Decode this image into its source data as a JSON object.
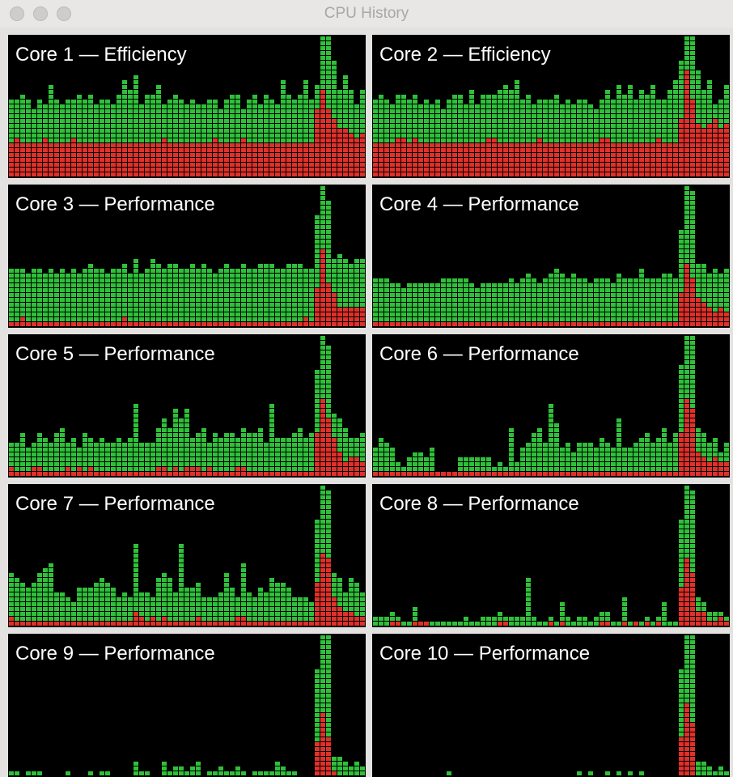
{
  "window": {
    "title": "CPU History",
    "traffic_lights": [
      "close-button",
      "minimize-button",
      "zoom-button"
    ]
  },
  "colors": {
    "user": "#2FC03A",
    "system": "#E0302A",
    "background": "#000000"
  },
  "cores": [
    {
      "label": "Core 1 — Efficiency",
      "system": [
        7,
        8,
        7,
        7,
        7,
        7,
        8,
        7,
        7,
        7,
        7,
        8,
        7,
        7,
        7,
        7,
        7,
        7,
        7,
        7,
        7,
        7,
        7,
        7,
        7,
        7,
        7,
        8,
        7,
        7,
        7,
        7,
        7,
        7,
        7,
        7,
        8,
        7,
        7,
        7,
        7,
        8,
        7,
        7,
        7,
        7,
        7,
        7,
        7,
        7,
        7,
        7,
        7,
        7,
        14,
        18,
        14,
        12,
        10,
        10,
        9,
        8,
        9,
        8
      ],
      "total": [
        16,
        16,
        17,
        16,
        14,
        16,
        15,
        19,
        16,
        15,
        16,
        16,
        17,
        16,
        17,
        15,
        16,
        16,
        15,
        17,
        20,
        18,
        21,
        15,
        17,
        17,
        19,
        15,
        16,
        17,
        16,
        15,
        16,
        15,
        15,
        16,
        16,
        14,
        16,
        17,
        17,
        14,
        16,
        17,
        15,
        17,
        16,
        15,
        20,
        17,
        16,
        17,
        20,
        16,
        19,
        29,
        29,
        24,
        18,
        21,
        18,
        15,
        18,
        19
      ]
    },
    {
      "label": "Core 2 — Efficiency",
      "system": [
        7,
        7,
        7,
        7,
        8,
        8,
        7,
        8,
        7,
        7,
        7,
        7,
        7,
        7,
        7,
        7,
        7,
        7,
        7,
        7,
        8,
        8,
        7,
        7,
        7,
        7,
        7,
        7,
        7,
        8,
        7,
        7,
        7,
        7,
        7,
        7,
        7,
        7,
        7,
        7,
        8,
        8,
        7,
        7,
        7,
        7,
        7,
        7,
        7,
        7,
        8,
        7,
        7,
        7,
        12,
        22,
        16,
        11,
        10,
        11,
        12,
        10,
        11,
        10
      ],
      "total": [
        16,
        17,
        16,
        15,
        17,
        17,
        16,
        17,
        15,
        16,
        15,
        16,
        14,
        16,
        17,
        17,
        15,
        18,
        15,
        17,
        17,
        17,
        18,
        19,
        18,
        20,
        16,
        17,
        15,
        16,
        16,
        16,
        17,
        15,
        16,
        15,
        16,
        16,
        15,
        14,
        16,
        18,
        16,
        19,
        17,
        19,
        16,
        18,
        17,
        19,
        16,
        16,
        18,
        20,
        24,
        29,
        29,
        22,
        18,
        20,
        15,
        16,
        19,
        19
      ]
    },
    {
      "label": "Core 3 — Performance",
      "system": [
        1,
        1,
        2,
        1,
        1,
        1,
        1,
        1,
        1,
        1,
        1,
        1,
        1,
        1,
        1,
        1,
        1,
        1,
        1,
        1,
        2,
        1,
        1,
        1,
        1,
        1,
        1,
        1,
        1,
        1,
        1,
        1,
        1,
        1,
        1,
        1,
        1,
        1,
        1,
        1,
        1,
        1,
        1,
        1,
        1,
        1,
        1,
        1,
        1,
        1,
        1,
        1,
        2,
        1,
        8,
        16,
        9,
        7,
        4,
        4,
        4,
        4,
        4,
        4
      ],
      "total": [
        12,
        12,
        12,
        11,
        12,
        12,
        11,
        12,
        11,
        12,
        11,
        12,
        11,
        12,
        13,
        12,
        12,
        11,
        12,
        12,
        13,
        11,
        14,
        11,
        12,
        14,
        13,
        12,
        13,
        13,
        12,
        12,
        13,
        12,
        13,
        12,
        11,
        12,
        13,
        12,
        12,
        13,
        12,
        12,
        13,
        13,
        13,
        12,
        12,
        13,
        13,
        13,
        12,
        12,
        23,
        29,
        26,
        14,
        15,
        14,
        13,
        14,
        14,
        13
      ]
    },
    {
      "label": "Core 4 — Performance",
      "system": [
        1,
        1,
        1,
        1,
        1,
        1,
        1,
        1,
        1,
        1,
        1,
        1,
        1,
        1,
        1,
        1,
        1,
        1,
        1,
        1,
        1,
        1,
        1,
        1,
        1,
        1,
        1,
        1,
        1,
        1,
        1,
        1,
        1,
        1,
        1,
        1,
        1,
        1,
        1,
        1,
        1,
        1,
        1,
        1,
        1,
        1,
        1,
        1,
        1,
        1,
        1,
        1,
        1,
        1,
        7,
        13,
        10,
        6,
        5,
        4,
        3,
        4,
        3,
        4
      ],
      "total": [
        10,
        10,
        10,
        9,
        9,
        8,
        9,
        9,
        9,
        9,
        9,
        9,
        10,
        10,
        10,
        10,
        10,
        9,
        8,
        9,
        9,
        9,
        9,
        9,
        10,
        9,
        10,
        11,
        10,
        9,
        10,
        11,
        12,
        11,
        10,
        11,
        10,
        10,
        9,
        10,
        10,
        10,
        9,
        11,
        10,
        10,
        10,
        12,
        10,
        10,
        10,
        11,
        11,
        10,
        20,
        29,
        28,
        13,
        13,
        11,
        12,
        11,
        12,
        10
      ]
    },
    {
      "label": "Core 5 — Performance",
      "system": [
        2,
        1,
        1,
        1,
        2,
        2,
        1,
        1,
        1,
        1,
        2,
        1,
        2,
        1,
        2,
        1,
        1,
        1,
        1,
        1,
        1,
        1,
        1,
        1,
        1,
        1,
        2,
        2,
        1,
        2,
        1,
        2,
        2,
        2,
        1,
        2,
        1,
        1,
        1,
        1,
        2,
        2,
        1,
        1,
        1,
        1,
        1,
        1,
        1,
        1,
        1,
        1,
        1,
        1,
        9,
        16,
        12,
        8,
        5,
        3,
        4,
        4,
        3,
        3
      ],
      "total": [
        7,
        7,
        9,
        6,
        7,
        9,
        8,
        7,
        9,
        10,
        7,
        8,
        6,
        9,
        8,
        7,
        8,
        7,
        7,
        8,
        7,
        8,
        15,
        7,
        7,
        7,
        10,
        12,
        10,
        14,
        12,
        14,
        8,
        9,
        10,
        7,
        9,
        8,
        9,
        9,
        8,
        10,
        9,
        9,
        10,
        7,
        15,
        8,
        8,
        8,
        9,
        10,
        8,
        9,
        22,
        29,
        27,
        13,
        12,
        10,
        8,
        8,
        9,
        7
      ]
    },
    {
      "label": "Core 6 — Performance",
      "system": [
        1,
        1,
        1,
        1,
        1,
        1,
        1,
        1,
        1,
        1,
        1,
        1,
        1,
        1,
        1,
        1,
        1,
        1,
        1,
        1,
        1,
        1,
        1,
        1,
        1,
        1,
        1,
        1,
        1,
        1,
        1,
        1,
        1,
        1,
        1,
        1,
        1,
        1,
        1,
        1,
        1,
        1,
        1,
        1,
        1,
        1,
        1,
        1,
        1,
        1,
        1,
        1,
        1,
        1,
        9,
        16,
        14,
        5,
        4,
        3,
        4,
        3,
        3,
        3
      ],
      "total": [
        6,
        8,
        7,
        6,
        3,
        2,
        4,
        5,
        5,
        4,
        6,
        1,
        1,
        1,
        1,
        4,
        4,
        4,
        4,
        4,
        4,
        2,
        3,
        2,
        10,
        3,
        6,
        7,
        9,
        10,
        7,
        15,
        11,
        6,
        7,
        5,
        7,
        7,
        7,
        6,
        8,
        7,
        6,
        12,
        6,
        6,
        7,
        8,
        9,
        7,
        8,
        10,
        7,
        9,
        23,
        29,
        29,
        10,
        9,
        7,
        8,
        5,
        7,
        5
      ]
    },
    {
      "label": "Core 7 — Performance",
      "system": [
        2,
        1,
        1,
        1,
        1,
        1,
        1,
        1,
        1,
        1,
        1,
        1,
        1,
        1,
        1,
        1,
        1,
        1,
        1,
        1,
        1,
        1,
        3,
        2,
        1,
        2,
        1,
        2,
        1,
        1,
        1,
        1,
        1,
        2,
        1,
        1,
        1,
        1,
        1,
        1,
        2,
        2,
        1,
        1,
        1,
        1,
        1,
        1,
        1,
        1,
        1,
        1,
        1,
        1,
        9,
        15,
        14,
        6,
        4,
        3,
        3,
        2,
        2,
        2
      ],
      "total": [
        11,
        10,
        9,
        8,
        9,
        11,
        12,
        13,
        7,
        7,
        6,
        5,
        8,
        8,
        8,
        9,
        10,
        9,
        8,
        6,
        7,
        6,
        17,
        7,
        7,
        6,
        10,
        11,
        10,
        7,
        17,
        8,
        8,
        9,
        6,
        6,
        6,
        7,
        11,
        8,
        6,
        13,
        7,
        6,
        8,
        7,
        10,
        9,
        9,
        8,
        6,
        6,
        6,
        5,
        22,
        29,
        28,
        11,
        10,
        7,
        10,
        9,
        7,
        11
      ]
    },
    {
      "label": "Core 8 — Performance",
      "system": [
        0,
        0,
        0,
        1,
        1,
        0,
        0,
        1,
        1,
        1,
        0,
        0,
        0,
        0,
        0,
        0,
        0,
        0,
        0,
        0,
        0,
        0,
        1,
        1,
        0,
        0,
        0,
        0,
        0,
        0,
        0,
        1,
        0,
        1,
        0,
        0,
        0,
        0,
        0,
        0,
        1,
        1,
        0,
        0,
        1,
        0,
        1,
        0,
        1,
        0,
        1,
        0,
        0,
        0,
        8,
        14,
        11,
        3,
        3,
        1,
        1,
        2,
        1,
        1
      ],
      "total": [
        2,
        2,
        2,
        3,
        2,
        1,
        1,
        4,
        1,
        1,
        1,
        1,
        1,
        1,
        1,
        1,
        2,
        1,
        1,
        2,
        2,
        2,
        3,
        2,
        2,
        2,
        2,
        10,
        2,
        1,
        1,
        2,
        1,
        5,
        2,
        1,
        2,
        2,
        1,
        2,
        3,
        3,
        1,
        1,
        6,
        1,
        1,
        1,
        2,
        1,
        2,
        5,
        1,
        1,
        22,
        29,
        28,
        6,
        5,
        3,
        3,
        3,
        2,
        3
      ]
    },
    {
      "label": "Core 9 — Performance",
      "system": [
        0,
        0,
        0,
        0,
        0,
        0,
        0,
        0,
        0,
        0,
        0,
        0,
        0,
        0,
        0,
        0,
        0,
        0,
        0,
        0,
        0,
        0,
        0,
        0,
        0,
        0,
        0,
        0,
        0,
        0,
        0,
        0,
        0,
        0,
        0,
        0,
        0,
        0,
        0,
        0,
        0,
        0,
        0,
        0,
        0,
        0,
        0,
        0,
        0,
        0,
        0,
        0,
        0,
        0,
        7,
        13,
        8,
        1,
        0,
        0,
        0,
        0,
        0,
        0
      ],
      "total": [
        1,
        1,
        0,
        1,
        1,
        1,
        0,
        0,
        0,
        0,
        1,
        0,
        0,
        0,
        1,
        0,
        1,
        1,
        0,
        0,
        0,
        0,
        3,
        1,
        1,
        0,
        0,
        3,
        1,
        2,
        2,
        1,
        2,
        3,
        0,
        1,
        1,
        2,
        1,
        1,
        2,
        1,
        0,
        1,
        1,
        1,
        1,
        3,
        2,
        1,
        1,
        0,
        0,
        0,
        22,
        29,
        29,
        4,
        4,
        3,
        2,
        3,
        2,
        3
      ]
    },
    {
      "label": "Core 10 — Performance",
      "system": [
        0,
        0,
        0,
        0,
        0,
        0,
        0,
        0,
        0,
        0,
        0,
        0,
        0,
        0,
        0,
        0,
        0,
        0,
        0,
        0,
        0,
        0,
        0,
        0,
        0,
        0,
        0,
        0,
        0,
        0,
        0,
        0,
        0,
        0,
        0,
        0,
        0,
        0,
        0,
        0,
        0,
        0,
        0,
        0,
        0,
        0,
        0,
        0,
        0,
        0,
        0,
        0,
        0,
        0,
        8,
        15,
        11,
        0,
        0,
        0,
        0,
        0,
        0,
        0
      ],
      "total": [
        0,
        0,
        0,
        0,
        0,
        0,
        0,
        0,
        0,
        0,
        0,
        0,
        0,
        1,
        0,
        0,
        0,
        0,
        0,
        0,
        0,
        0,
        0,
        0,
        0,
        0,
        0,
        0,
        0,
        0,
        0,
        0,
        0,
        0,
        0,
        0,
        1,
        0,
        1,
        0,
        0,
        1,
        0,
        1,
        0,
        1,
        0,
        1,
        0,
        0,
        0,
        0,
        0,
        0,
        22,
        29,
        29,
        3,
        3,
        2,
        1,
        2,
        1,
        3
      ]
    }
  ]
}
